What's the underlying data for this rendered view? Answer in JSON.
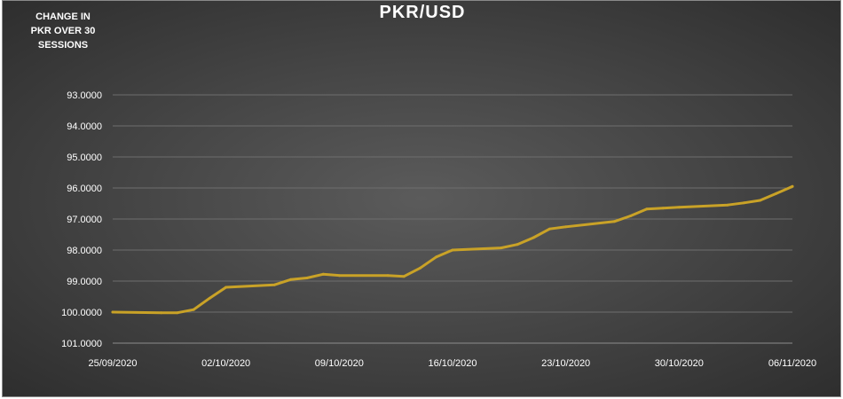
{
  "chart_data": {
    "type": "line",
    "title": "PKR/USD",
    "ylabel": "CHANGE IN PKR OVER 30 SESSIONS",
    "ylabel_lines": [
      "CHANGE IN",
      "PKR OVER 30",
      "SESSIONS"
    ],
    "xlabel": "",
    "y_inverted": true,
    "ylim": [
      93.0,
      101.0
    ],
    "y_ticks": [
      "93.0000",
      "94.0000",
      "95.0000",
      "96.0000",
      "97.0000",
      "98.0000",
      "99.0000",
      "100.0000",
      "101.0000"
    ],
    "x_ticks": [
      "25/09/2020",
      "02/10/2020",
      "09/10/2020",
      "16/10/2020",
      "23/10/2020",
      "30/10/2020",
      "06/11/2020"
    ],
    "xlim": [
      "25/09/2020",
      "06/11/2020"
    ],
    "grid": true,
    "line_color": "#c9a227",
    "series": [
      {
        "values": [
          {
            "x": "25/09/2020",
            "y": 100.0
          },
          {
            "x": "28/09/2020",
            "y": 100.02
          },
          {
            "x": "29/09/2020",
            "y": 100.02
          },
          {
            "x": "30/09/2020",
            "y": 99.92
          },
          {
            "x": "01/10/2020",
            "y": 99.55
          },
          {
            "x": "02/10/2020",
            "y": 99.2
          },
          {
            "x": "05/10/2020",
            "y": 99.12
          },
          {
            "x": "06/10/2020",
            "y": 98.95
          },
          {
            "x": "07/10/2020",
            "y": 98.9
          },
          {
            "x": "08/10/2020",
            "y": 98.78
          },
          {
            "x": "09/10/2020",
            "y": 98.82
          },
          {
            "x": "12/10/2020",
            "y": 98.82
          },
          {
            "x": "13/10/2020",
            "y": 98.85
          },
          {
            "x": "14/10/2020",
            "y": 98.58
          },
          {
            "x": "15/10/2020",
            "y": 98.22
          },
          {
            "x": "16/10/2020",
            "y": 98.0
          },
          {
            "x": "19/10/2020",
            "y": 97.93
          },
          {
            "x": "20/10/2020",
            "y": 97.82
          },
          {
            "x": "21/10/2020",
            "y": 97.6
          },
          {
            "x": "22/10/2020",
            "y": 97.32
          },
          {
            "x": "23/10/2020",
            "y": 97.25
          },
          {
            "x": "26/10/2020",
            "y": 97.08
          },
          {
            "x": "27/10/2020",
            "y": 96.9
          },
          {
            "x": "28/10/2020",
            "y": 96.68
          },
          {
            "x": "29/10/2020",
            "y": 96.65
          },
          {
            "x": "30/10/2020",
            "y": 96.62
          },
          {
            "x": "02/11/2020",
            "y": 96.55
          },
          {
            "x": "03/11/2020",
            "y": 96.48
          },
          {
            "x": "04/11/2020",
            "y": 96.4
          },
          {
            "x": "05/11/2020",
            "y": 96.18
          },
          {
            "x": "06/11/2020",
            "y": 95.95
          }
        ]
      }
    ]
  }
}
